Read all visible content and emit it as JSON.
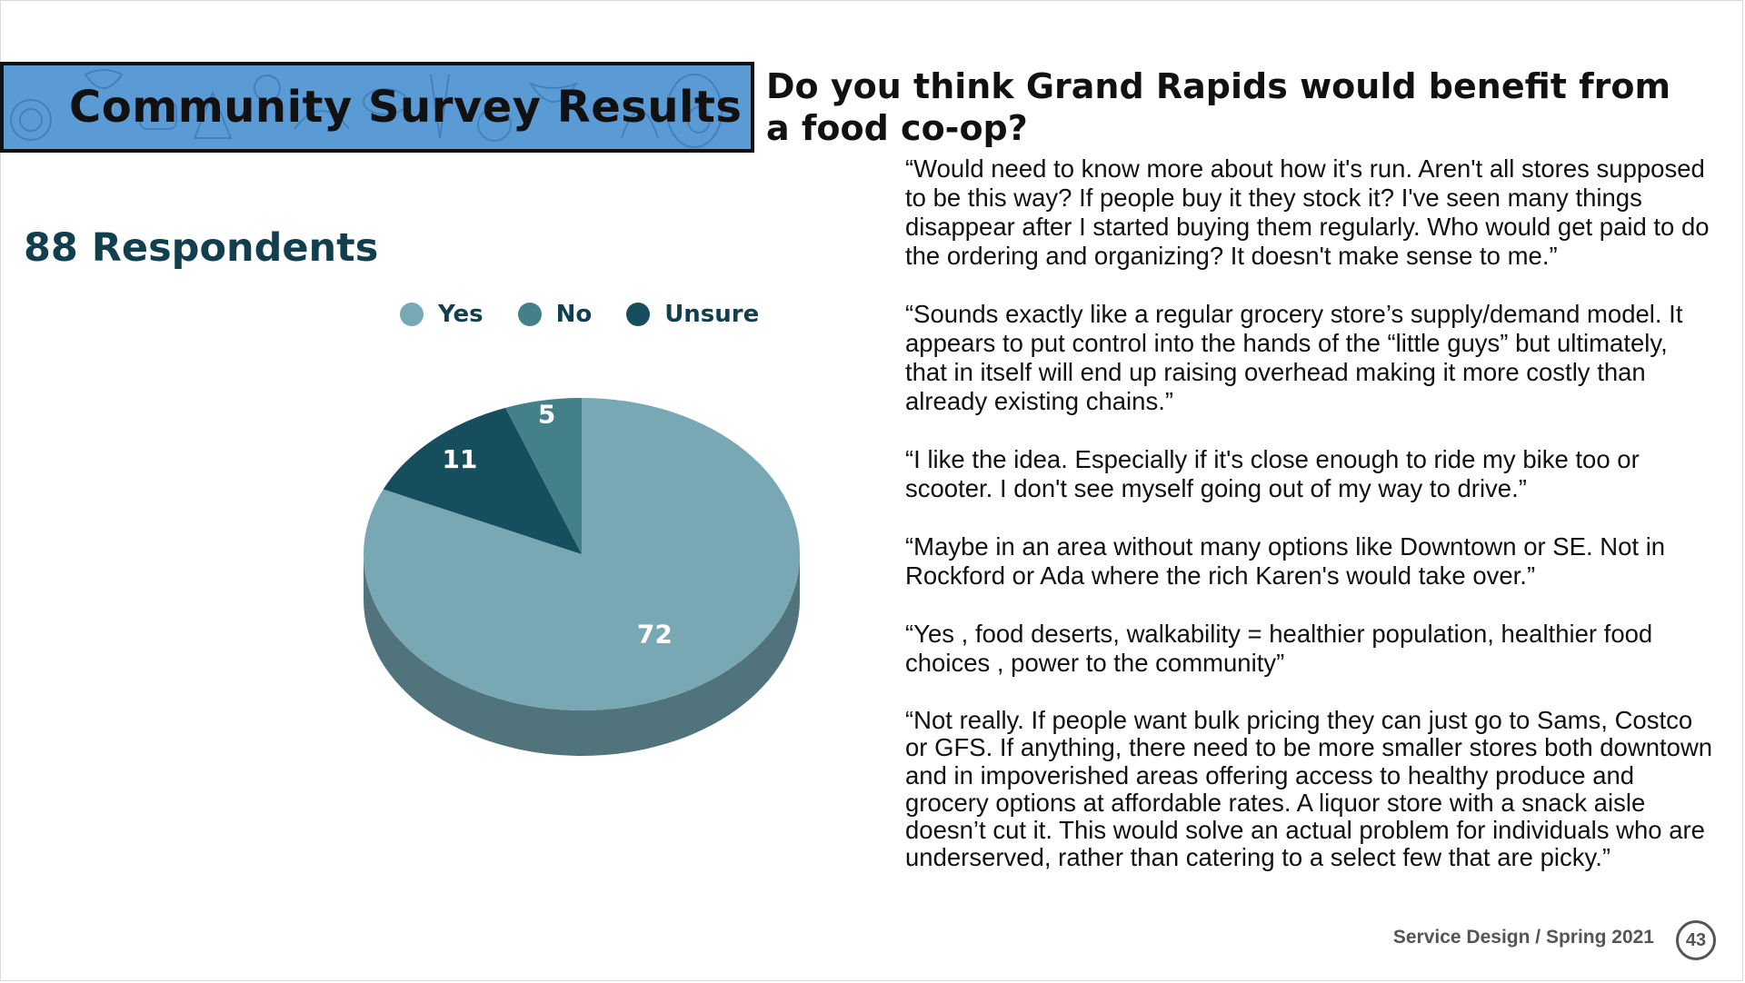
{
  "slide": {
    "banner_title": "Community Survey Results",
    "question": "Do you think Grand Rapids would benefit from a food co-op?",
    "respondents_label": "88 Respondents",
    "footer": "Service Design / Spring 2021",
    "page_number": "43",
    "colors": {
      "banner": "#5b9bd5",
      "heading_dark": "#123f4e",
      "footer_grey": "#555555"
    }
  },
  "chart_data": {
    "type": "pie",
    "style": "3d",
    "title": "",
    "legend_position": "top",
    "slices": [
      {
        "name": "Yes",
        "value": 72,
        "color": "#78a8b3",
        "side_color": "#51737b"
      },
      {
        "name": "No",
        "value": 5,
        "color": "#44808a",
        "side_color": "#2f5a61"
      },
      {
        "name": "Unsure",
        "value": 11,
        "color": "#174e5d",
        "side_color": "#0f3540"
      }
    ]
  },
  "quotes": [
    "“Would need to know more about how it's run. Aren't all stores supposed to be this way? If people buy it they stock it? I've seen many things disappear after I started buying them regularly. Who would get paid to do the ordering and organizing? It doesn't make sense to me.”",
    "“Sounds exactly like a regular grocery store’s supply/demand model. It appears to put control into the hands of the “little guys” but ultimately, that in itself will end up raising overhead making it more costly than already existing chains.”",
    "“I like the idea. Especially if it's close enough to ride my bike too or scooter. I don't see myself going out of my way to drive.”",
    "“Maybe in an area without many options like Downtown or SE. Not in Rockford or Ada where the rich Karen's would take over.”",
    "“Yes , food deserts, walkability = healthier population, healthier food choices , power to the community”",
    "“Not really. If people want bulk pricing they can just go to Sams, Costco or GFS. If anything, there need to be more smaller stores both downtown and in impoverished areas offering access to healthy produce and grocery options at affordable rates. A liquor store with a snack aisle doesn’t cut it. This would solve an actual problem for individuals who are underserved, rather than catering to a select few that are picky.”"
  ]
}
